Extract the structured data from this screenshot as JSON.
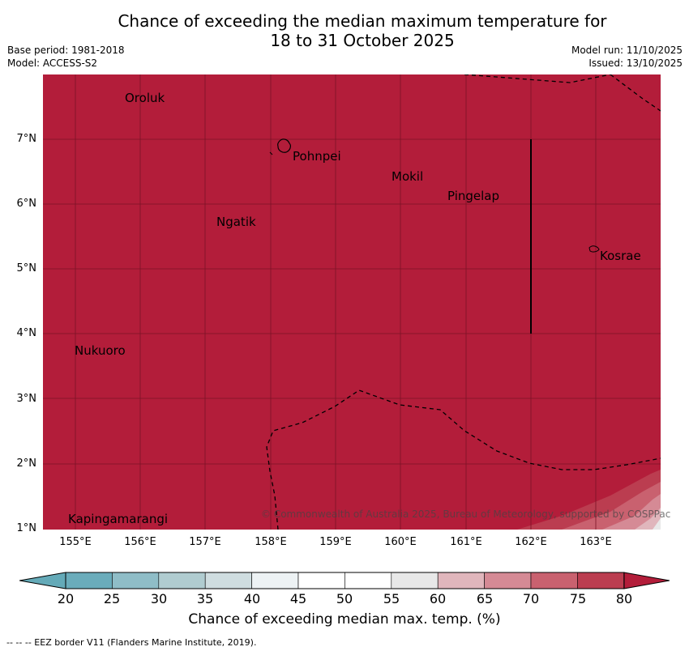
{
  "title_line1": "Chance of exceeding the median maximum temperature for",
  "title_line2": "18 to 31 October 2025",
  "meta": {
    "base_period": "Base period: 1981-2018",
    "model": "Model: ACCESS-S2",
    "model_run": "Model run: 11/10/2025",
    "issued": "Issued: 13/10/2025"
  },
  "map": {
    "lat_labels": [
      "7°N",
      "6°N",
      "5°N",
      "4°N",
      "3°N",
      "2°N",
      "1°N"
    ],
    "lon_labels": [
      "155°E",
      "156°E",
      "157°E",
      "158°E",
      "159°E",
      "160°E",
      "161°E",
      "162°E",
      "163°E"
    ],
    "places": [
      "Oroluk",
      "Pohnpei",
      "Mokil",
      "Pingelap",
      "Ngatik",
      "Kosrae",
      "Nukuoro",
      "Kapingamarangi"
    ],
    "copyright": "© Commonwealth of Australia 2025, Bureau of Meteorology, supported by COSPPac",
    "dominant_category": "above 80%",
    "colors": {
      "above80": "#b31d3a",
      "grid": "#7a1326"
    }
  },
  "colorbar": {
    "ticks": [
      "20",
      "25",
      "30",
      "35",
      "40",
      "45",
      "50",
      "55",
      "60",
      "65",
      "70",
      "75",
      "80"
    ],
    "colors": [
      "#64aab8",
      "#6aacbb",
      "#8fbdc7",
      "#b0ccd0",
      "#cfdde0",
      "#edf2f4",
      "#ffffff",
      "#ffffff",
      "#e8e8e8",
      "#e0b6bc",
      "#d58a95",
      "#c9616f",
      "#bb3d50",
      "#b31d3a"
    ],
    "label": "Chance of exceeding median max. temp. (%)"
  },
  "footnote": "--  --  -- EEZ border V11 (Flanders Marine Institute, 2019)."
}
